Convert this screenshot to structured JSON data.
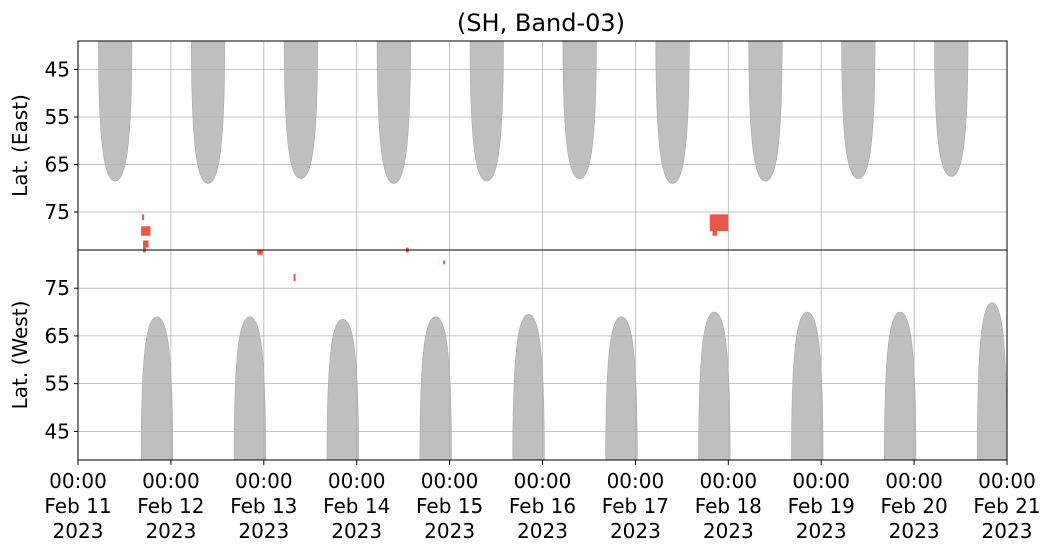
{
  "chart_data": {
    "type": "heatmap",
    "title": "(SH, Band-03)",
    "x_ticks": [
      {
        "line1": "00:00",
        "line2": "Feb 11",
        "line3": "2023"
      },
      {
        "line1": "00:00",
        "line2": "Feb 12",
        "line3": "2023"
      },
      {
        "line1": "00:00",
        "line2": "Feb 13",
        "line3": "2023"
      },
      {
        "line1": "00:00",
        "line2": "Feb 14",
        "line3": "2023"
      },
      {
        "line1": "00:00",
        "line2": "Feb 15",
        "line3": "2023"
      },
      {
        "line1": "00:00",
        "line2": "Feb 16",
        "line3": "2023"
      },
      {
        "line1": "00:00",
        "line2": "Feb 17",
        "line3": "2023"
      },
      {
        "line1": "00:00",
        "line2": "Feb 18",
        "line3": "2023"
      },
      {
        "line1": "00:00",
        "line2": "Feb 19",
        "line3": "2023"
      },
      {
        "line1": "00:00",
        "line2": "Feb 20",
        "line3": "2023"
      },
      {
        "line1": "00:00",
        "line2": "Feb 21",
        "line3": "2023"
      }
    ],
    "xlim_days": [
      0,
      10
    ],
    "grid": true,
    "panels": [
      {
        "name": "east",
        "ylabel": "Lat. (East)",
        "ylim": [
          39,
          83
        ],
        "y_ticks": [
          45,
          55,
          65,
          75
        ],
        "coverage_color": "#bfbfbf",
        "coverage_arches": [
          {
            "start_day": 0.22,
            "end_day": 0.58,
            "min_lat": 68.5
          },
          {
            "start_day": 1.22,
            "end_day": 1.58,
            "min_lat": 69
          },
          {
            "start_day": 2.22,
            "end_day": 2.58,
            "min_lat": 68
          },
          {
            "start_day": 3.22,
            "end_day": 3.58,
            "min_lat": 69
          },
          {
            "start_day": 4.22,
            "end_day": 4.58,
            "min_lat": 68.5
          },
          {
            "start_day": 5.22,
            "end_day": 5.58,
            "min_lat": 68
          },
          {
            "start_day": 6.22,
            "end_day": 6.58,
            "min_lat": 69
          },
          {
            "start_day": 7.22,
            "end_day": 7.58,
            "min_lat": 68.5
          },
          {
            "start_day": 8.22,
            "end_day": 8.58,
            "min_lat": 68
          },
          {
            "start_day": 9.22,
            "end_day": 9.58,
            "min_lat": 67.5
          }
        ],
        "events": [
          {
            "day": 0.68,
            "lat": 78,
            "w_day": 0.1,
            "h_lat": 2
          },
          {
            "day": 0.7,
            "lat": 81,
            "w_day": 0.06,
            "h_lat": 1.5
          },
          {
            "day": 0.69,
            "lat": 75.5,
            "w_day": 0.02,
            "h_lat": 1.2
          },
          {
            "day": 6.8,
            "lat": 75.5,
            "w_day": 0.2,
            "h_lat": 3.5
          },
          {
            "day": 6.83,
            "lat": 78,
            "w_day": 0.05,
            "h_lat": 2
          }
        ]
      },
      {
        "name": "west",
        "ylabel": "Lat. (West)",
        "ylim": [
          39,
          83
        ],
        "y_ticks": [
          45,
          55,
          65,
          75
        ],
        "coverage_color": "#bfbfbf",
        "coverage_arches": [
          {
            "start_day": 0.68,
            "end_day": 1.02,
            "max_lat": 69
          },
          {
            "start_day": 1.68,
            "end_day": 2.02,
            "max_lat": 69
          },
          {
            "start_day": 2.68,
            "end_day": 3.02,
            "max_lat": 68.5
          },
          {
            "start_day": 3.68,
            "end_day": 4.02,
            "max_lat": 69
          },
          {
            "start_day": 4.68,
            "end_day": 5.02,
            "max_lat": 69.5
          },
          {
            "start_day": 5.68,
            "end_day": 6.02,
            "max_lat": 69
          },
          {
            "start_day": 6.68,
            "end_day": 7.02,
            "max_lat": 70
          },
          {
            "start_day": 7.68,
            "end_day": 8.02,
            "max_lat": 70
          },
          {
            "start_day": 8.68,
            "end_day": 9.02,
            "max_lat": 70
          },
          {
            "start_day": 9.68,
            "end_day": 10.0,
            "max_lat": 72
          }
        ],
        "events": [
          {
            "day": 0.7,
            "lat": 82.5,
            "w_day": 0.03,
            "h_lat": 1
          },
          {
            "day": 1.93,
            "lat": 82,
            "w_day": 0.06,
            "h_lat": 1
          },
          {
            "day": 2.32,
            "lat": 76.5,
            "w_day": 0.02,
            "h_lat": 1.5
          },
          {
            "day": 3.53,
            "lat": 82.5,
            "w_day": 0.03,
            "h_lat": 1
          },
          {
            "day": 3.93,
            "lat": 80,
            "w_day": 0.02,
            "h_lat": 0.8
          }
        ]
      }
    ],
    "event_color": "#e8574a"
  }
}
